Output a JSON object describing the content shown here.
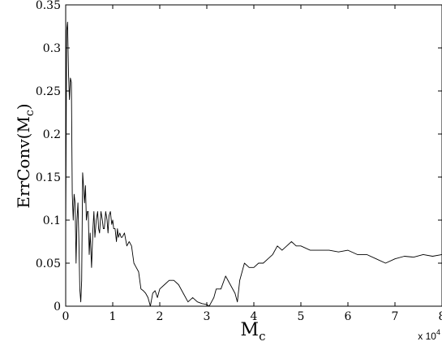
{
  "chart_data": {
    "type": "line",
    "title": "",
    "xlabel": "M_c",
    "xlabel_main": "M",
    "xlabel_sub": "c",
    "ylabel": "ErrConv(M_c)",
    "ylabel_main": "ErrConv(M",
    "ylabel_sub": "c",
    "ylabel_tail": ")",
    "x_multiplier": "x 10",
    "x_multiplier_exp": "4",
    "xlim": [
      0,
      8
    ],
    "ylim": [
      0,
      0.35
    ],
    "xticks": [
      0,
      1,
      2,
      3,
      4,
      5,
      6,
      7,
      8
    ],
    "yticks": [
      0,
      0.05,
      0.1,
      0.15,
      0.2,
      0.25,
      0.3,
      0.35
    ],
    "xtick_labels": [
      "0",
      "1",
      "2",
      "3",
      "4",
      "5",
      "6",
      "7",
      "8"
    ],
    "ytick_labels": [
      "0",
      "0.05",
      "0.1",
      "0.15",
      "0.2",
      "0.25",
      "0.3",
      "0.35"
    ],
    "grid": false,
    "series": [
      {
        "color": "#000000",
        "x": [
          0,
          0.02,
          0.04,
          0.06,
          0.08,
          0.1,
          0.12,
          0.14,
          0.16,
          0.18,
          0.2,
          0.22,
          0.24,
          0.26,
          0.28,
          0.3,
          0.32,
          0.34,
          0.36,
          0.38,
          0.4,
          0.42,
          0.44,
          0.46,
          0.48,
          0.5,
          0.52,
          0.55,
          0.58,
          0.6,
          0.62,
          0.65,
          0.68,
          0.7,
          0.72,
          0.75,
          0.78,
          0.8,
          0.82,
          0.85,
          0.88,
          0.9,
          0.92,
          0.95,
          0.98,
          1.0,
          1.02,
          1.05,
          1.08,
          1.1,
          1.12,
          1.15,
          1.18,
          1.2,
          1.25,
          1.3,
          1.35,
          1.4,
          1.45,
          1.5,
          1.55,
          1.6,
          1.65,
          1.7,
          1.75,
          1.8,
          1.85,
          1.9,
          1.95,
          2.0,
          2.1,
          2.2,
          2.3,
          2.4,
          2.5,
          2.6,
          2.7,
          2.8,
          2.9,
          3.0,
          3.05,
          3.1,
          3.15,
          3.2,
          3.25,
          3.3,
          3.4,
          3.5,
          3.6,
          3.65,
          3.7,
          3.8,
          3.9,
          4.0,
          4.1,
          4.2,
          4.3,
          4.4,
          4.5,
          4.6,
          4.7,
          4.8,
          4.9,
          5.0,
          5.2,
          5.4,
          5.6,
          5.8,
          6.0,
          6.2,
          6.4,
          6.6,
          6.8,
          7.0,
          7.2,
          7.4,
          7.6,
          7.8,
          8.0
        ],
        "y": [
          0.08,
          0.32,
          0.33,
          0.27,
          0.24,
          0.265,
          0.26,
          0.13,
          0.1,
          0.13,
          0.12,
          0.05,
          0.1,
          0.12,
          0.08,
          0.02,
          0.005,
          0.03,
          0.155,
          0.14,
          0.12,
          0.14,
          0.1,
          0.11,
          0.11,
          0.06,
          0.085,
          0.045,
          0.09,
          0.11,
          0.08,
          0.1,
          0.11,
          0.09,
          0.085,
          0.11,
          0.1,
          0.09,
          0.09,
          0.11,
          0.1,
          0.085,
          0.105,
          0.11,
          0.095,
          0.1,
          0.09,
          0.09,
          0.075,
          0.09,
          0.08,
          0.085,
          0.08,
          0.08,
          0.085,
          0.07,
          0.075,
          0.07,
          0.05,
          0.045,
          0.04,
          0.02,
          0.018,
          0.015,
          0.01,
          0.0,
          0.015,
          0.018,
          0.01,
          0.02,
          0.025,
          0.03,
          0.03,
          0.025,
          0.015,
          0.005,
          0.01,
          0.005,
          0.003,
          0.002,
          0.0,
          0.005,
          0.01,
          0.02,
          0.02,
          0.02,
          0.035,
          0.025,
          0.015,
          0.005,
          0.03,
          0.05,
          0.045,
          0.045,
          0.05,
          0.05,
          0.055,
          0.06,
          0.07,
          0.065,
          0.07,
          0.075,
          0.07,
          0.07,
          0.065,
          0.065,
          0.065,
          0.063,
          0.065,
          0.06,
          0.06,
          0.055,
          0.05,
          0.055,
          0.058,
          0.057,
          0.06,
          0.058,
          0.06
        ]
      }
    ]
  }
}
